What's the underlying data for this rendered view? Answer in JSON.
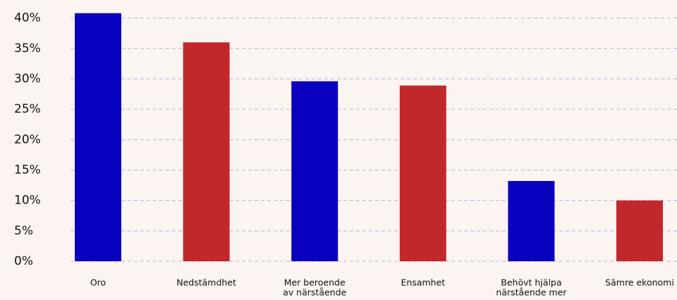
{
  "chart_data": {
    "type": "bar",
    "categories": [
      [
        "Oro"
      ],
      [
        "Nedstämdhet"
      ],
      [
        "Mer beroende",
        "av närstående"
      ],
      [
        "Ensamhet"
      ],
      [
        "Behövt hjälpa",
        "närstående mer"
      ],
      [
        "Sämre ekonomi"
      ]
    ],
    "values": [
      40.8,
      36,
      29.6,
      28.9,
      13.2,
      10
    ],
    "colors": [
      "#0a00c0",
      "#c0282c",
      "#0a00c0",
      "#c0282c",
      "#0a00c0",
      "#c0282c"
    ],
    "ylim": [
      0,
      41
    ],
    "yticks": [
      {
        "value": 0,
        "label": "0%"
      },
      {
        "value": 5,
        "label": "5%"
      },
      {
        "value": 10,
        "label": "10%"
      },
      {
        "value": 15,
        "label": "15%"
      },
      {
        "value": 20,
        "label": "20%"
      },
      {
        "value": 25,
        "label": "25%"
      },
      {
        "value": 30,
        "label": "30%"
      },
      {
        "value": 35,
        "label": "35%"
      },
      {
        "value": 40,
        "label": "40%"
      }
    ],
    "grid": true
  }
}
